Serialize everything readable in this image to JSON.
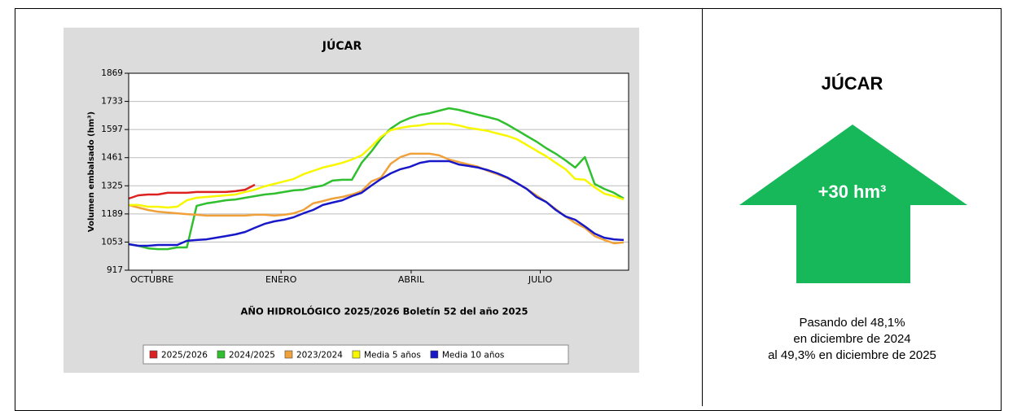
{
  "chart_data": {
    "type": "line",
    "title": "JÚCAR",
    "y_label": "Volumen embalsado (hm³)",
    "x_label": "AÑO HIDROLÓGICO 2025/2026 Boletín 52 del año 2025",
    "x": [
      1,
      2,
      3,
      4,
      5,
      6,
      7,
      8,
      9,
      10,
      11,
      12,
      13,
      14,
      15,
      16,
      17,
      18,
      19,
      20,
      21,
      22,
      23,
      24,
      25,
      26,
      27,
      28,
      29,
      30,
      31,
      32,
      33,
      34,
      35,
      36,
      37,
      38,
      39,
      40,
      41,
      42,
      43,
      44,
      45,
      46,
      47,
      48,
      49,
      50,
      51,
      52
    ],
    "xlim": [
      1,
      52.5
    ],
    "xticks": [
      {
        "value": 3.4,
        "label": "OCTUBRE"
      },
      {
        "value": 16.7,
        "label": "ENERO"
      },
      {
        "value": 30.1,
        "label": "ABRIL"
      },
      {
        "value": 43.4,
        "label": "JULIO"
      }
    ],
    "ylim": [
      917,
      1869
    ],
    "yticks": [
      917,
      1053,
      1189,
      1325,
      1461,
      1597,
      1733,
      1869
    ],
    "grid": true,
    "series": [
      {
        "name": "2025/2026",
        "color": "#dd2020",
        "values": [
          1263,
          1279,
          1283,
          1283,
          1291,
          1291,
          1291,
          1295,
          1295,
          1295,
          1295,
          1299,
          1306,
          1330,
          null,
          null,
          null,
          null,
          null,
          null,
          null,
          null,
          null,
          null,
          null,
          null,
          null,
          null,
          null,
          null,
          null,
          null,
          null,
          null,
          null,
          null,
          null,
          null,
          null,
          null,
          null,
          null,
          null,
          null,
          null,
          null,
          null,
          null,
          null,
          null,
          null,
          null
        ]
      },
      {
        "name": "2024/2025",
        "color": "#2fbf2f",
        "values": [
          1043,
          1035,
          1023,
          1019,
          1019,
          1027,
          1027,
          1228,
          1240,
          1247,
          1255,
          1259,
          1267,
          1275,
          1283,
          1287,
          1295,
          1303,
          1306,
          1318,
          1326,
          1350,
          1354,
          1354,
          1436,
          1491,
          1554,
          1602,
          1633,
          1653,
          1668,
          1676,
          1688,
          1700,
          1692,
          1680,
          1668,
          1657,
          1645,
          1621,
          1594,
          1566,
          1539,
          1507,
          1480,
          1448,
          1413,
          1464,
          1334,
          1310,
          1291,
          1263
        ]
      },
      {
        "name": "2023/2024",
        "color": "#f0a13a",
        "values": [
          1232,
          1220,
          1208,
          1200,
          1196,
          1192,
          1188,
          1185,
          1181,
          1181,
          1181,
          1181,
          1181,
          1185,
          1185,
          1181,
          1185,
          1192,
          1208,
          1240,
          1251,
          1263,
          1271,
          1283,
          1299,
          1346,
          1365,
          1432,
          1464,
          1480,
          1480,
          1480,
          1472,
          1452,
          1440,
          1428,
          1417,
          1397,
          1381,
          1362,
          1338,
          1310,
          1279,
          1247,
          1212,
          1177,
          1145,
          1122,
          1082,
          1063,
          1047,
          1051
        ]
      },
      {
        "name": "Media 5 años",
        "color": "#f7f700",
        "values": [
          1232,
          1232,
          1224,
          1224,
          1220,
          1224,
          1255,
          1267,
          1271,
          1275,
          1279,
          1283,
          1295,
          1306,
          1322,
          1334,
          1346,
          1358,
          1381,
          1397,
          1413,
          1424,
          1436,
          1452,
          1472,
          1515,
          1562,
          1594,
          1605,
          1613,
          1617,
          1625,
          1625,
          1625,
          1617,
          1605,
          1598,
          1590,
          1578,
          1566,
          1550,
          1523,
          1495,
          1468,
          1436,
          1405,
          1358,
          1354,
          1318,
          1287,
          1275,
          1259
        ]
      },
      {
        "name": "Media 10 años",
        "color": "#1818c8",
        "values": [
          1043,
          1035,
          1035,
          1039,
          1039,
          1039,
          1059,
          1063,
          1066,
          1074,
          1082,
          1090,
          1102,
          1122,
          1141,
          1153,
          1161,
          1173,
          1192,
          1208,
          1232,
          1244,
          1255,
          1275,
          1291,
          1326,
          1358,
          1385,
          1405,
          1417,
          1436,
          1444,
          1444,
          1444,
          1428,
          1421,
          1413,
          1401,
          1385,
          1365,
          1338,
          1310,
          1271,
          1247,
          1208,
          1177,
          1161,
          1129,
          1094,
          1074,
          1066,
          1063
        ]
      }
    ]
  },
  "summary": {
    "title": "JÚCAR",
    "change": "+30 hm³",
    "color": "#16b85a",
    "note": [
      "Pasando del 48,1%",
      "en diciembre de 2024",
      "al 49,3% en diciembre de 2025"
    ]
  }
}
